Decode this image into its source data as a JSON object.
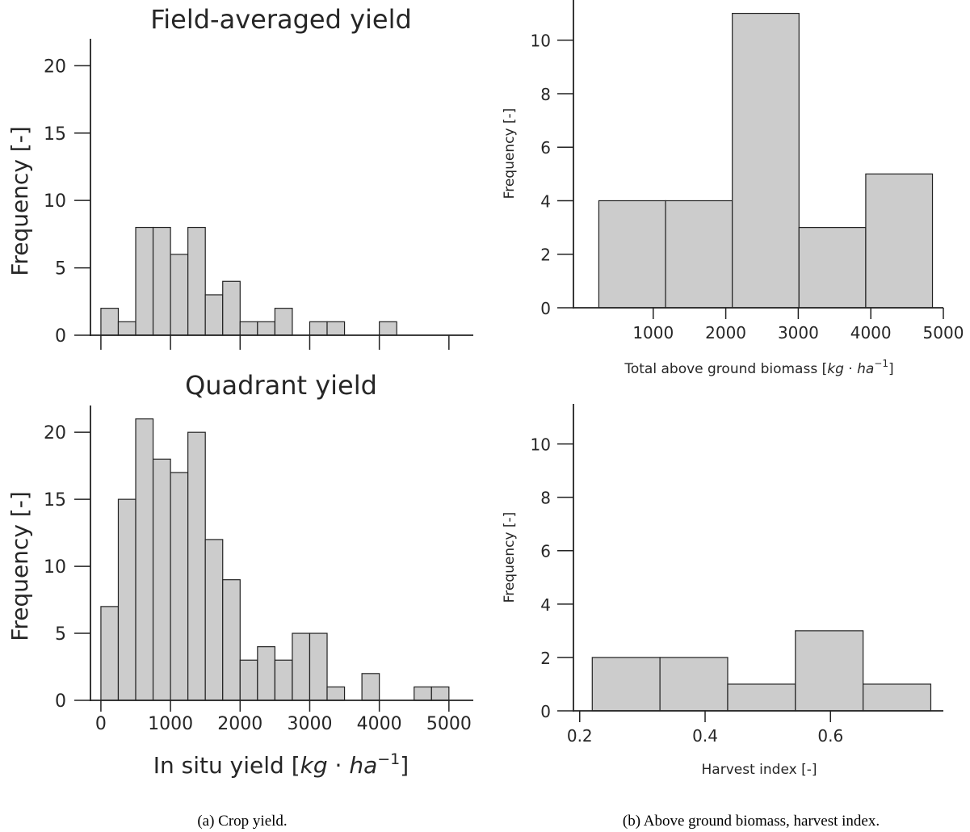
{
  "chart_data": [
    {
      "id": "field",
      "type": "bar",
      "title": "Field-averaged yield",
      "ylabel": "Frequency [-]",
      "xlabel": "",
      "xlim": [
        -150,
        5350
      ],
      "ylim": [
        0,
        22
      ],
      "xticks": [
        0,
        1000,
        2000,
        3000,
        4000,
        5000
      ],
      "show_xtick_labels": false,
      "yticks": [
        0,
        5,
        10,
        15,
        20
      ],
      "bin_start": 0,
      "bin_width": 250,
      "values": [
        2,
        1,
        8,
        8,
        6,
        8,
        3,
        4,
        1,
        1,
        2,
        0,
        1,
        1,
        0,
        0,
        1
      ]
    },
    {
      "id": "quadrant",
      "type": "bar",
      "title": "Quadrant yield",
      "ylabel": "Frequency [-]",
      "xlabel": "In situ yield [kg·ha⁻¹]",
      "xlim": [
        -150,
        5350
      ],
      "ylim": [
        0,
        22
      ],
      "xticks": [
        0,
        1000,
        2000,
        3000,
        4000,
        5000
      ],
      "show_xtick_labels": true,
      "yticks": [
        0,
        5,
        10,
        15,
        20
      ],
      "bin_start": 0,
      "bin_width": 250,
      "values": [
        7,
        15,
        21,
        18,
        17,
        20,
        12,
        9,
        3,
        4,
        3,
        5,
        5,
        1,
        0,
        2,
        0,
        0,
        1,
        1
      ]
    },
    {
      "id": "biomass",
      "type": "bar",
      "title": "",
      "ylabel": "Frequency [-]",
      "xlabel": "Total above ground biomass [kg·ha⁻¹]",
      "xlim": [
        -100,
        5000
      ],
      "ylim": [
        0,
        11.5
      ],
      "xticks": [
        1000,
        2000,
        3000,
        4000,
        5000
      ],
      "show_xtick_labels": true,
      "yticks": [
        0,
        2,
        4,
        6,
        8,
        10
      ],
      "bin_start": 250,
      "bin_width": 920,
      "values": [
        4,
        4,
        11,
        3,
        5
      ]
    },
    {
      "id": "harvest",
      "type": "bar",
      "title": "",
      "ylabel": "Frequency [-]",
      "xlabel": "Harvest index [-]",
      "xlim": [
        0.19,
        0.78
      ],
      "ylim": [
        0,
        11.5
      ],
      "xticks": [
        0.2,
        0.4,
        0.6
      ],
      "show_xtick_labels": true,
      "yticks": [
        0,
        2,
        4,
        6,
        8,
        10
      ],
      "bin_start": 0.22,
      "bin_width": 0.108,
      "values": [
        2,
        2,
        1,
        3,
        1
      ]
    }
  ],
  "captions": {
    "left": "(a) Crop yield.",
    "right": "(b) Above ground biomass, harvest index."
  }
}
